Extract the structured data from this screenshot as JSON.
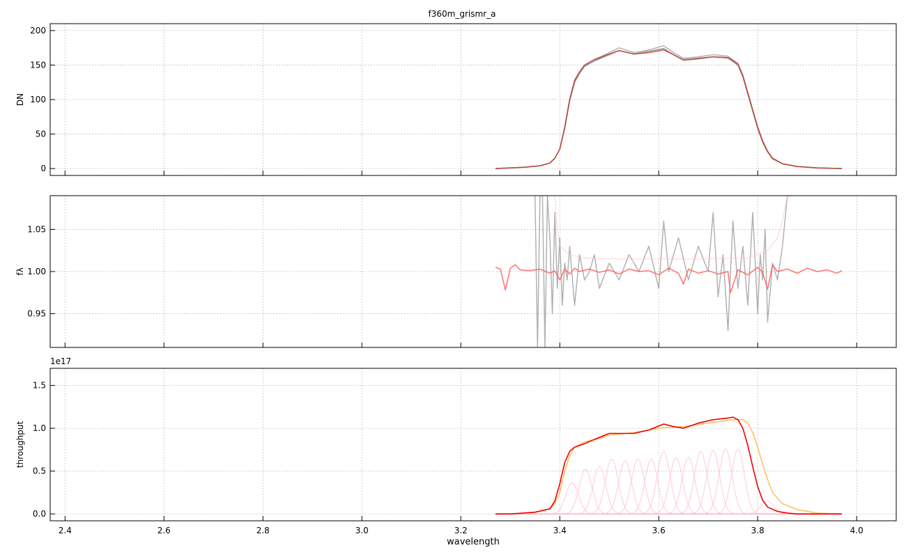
{
  "figure": {
    "title": "f360m_grismr_a",
    "xlabel": "wavelength"
  },
  "colors": {
    "grid": "#b0b0b0",
    "data_gray": "#7f7f7f",
    "model_red": "#c0392b",
    "ratio_red": "#ff5a5a",
    "total_red": "#ee0000",
    "orange": "#ffc060",
    "pink": "#ffc0cb"
  },
  "chart_data": [
    {
      "type": "line",
      "panel": "top",
      "ylabel": "DN",
      "xlim": [
        2.37,
        4.08
      ],
      "ylim": [
        -10,
        210
      ],
      "xticks": [
        2.4,
        2.6,
        2.8,
        3.0,
        3.2,
        3.4,
        3.6,
        3.8,
        4.0
      ],
      "yticks": [
        0,
        50,
        100,
        150,
        200
      ],
      "yticklabels": [
        "0",
        "50",
        "100",
        "150",
        "200"
      ],
      "grid": true,
      "series": [
        {
          "role": "data_noisy_light",
          "x": [
            3.27,
            3.3,
            3.33,
            3.36,
            3.38,
            3.39,
            3.4,
            3.41,
            3.42,
            3.43,
            3.44,
            3.45,
            3.47,
            3.5,
            3.52,
            3.55,
            3.58,
            3.61,
            3.63,
            3.65,
            3.68,
            3.71,
            3.74,
            3.76,
            3.77,
            3.78,
            3.79,
            3.8,
            3.81,
            3.82,
            3.83,
            3.85,
            3.88,
            3.92,
            3.97
          ],
          "y": [
            0,
            1,
            2,
            4,
            8,
            15,
            28,
            60,
            100,
            128,
            140,
            150,
            158,
            168,
            175,
            168,
            172,
            178,
            168,
            160,
            162,
            165,
            163,
            152,
            135,
            110,
            85,
            60,
            40,
            25,
            15,
            7,
            3,
            1,
            0
          ]
        },
        {
          "role": "data_noisy_dark",
          "x": [
            3.27,
            3.3,
            3.33,
            3.36,
            3.38,
            3.39,
            3.4,
            3.41,
            3.42,
            3.43,
            3.44,
            3.45,
            3.47,
            3.5,
            3.52,
            3.55,
            3.58,
            3.61,
            3.63,
            3.65,
            3.68,
            3.71,
            3.74,
            3.76,
            3.77,
            3.78,
            3.79,
            3.8,
            3.81,
            3.82,
            3.83,
            3.85,
            3.88,
            3.92,
            3.97
          ],
          "y": [
            0,
            1,
            2,
            4,
            8,
            15,
            28,
            58,
            98,
            125,
            138,
            148,
            156,
            165,
            171,
            166,
            170,
            174,
            165,
            158,
            160,
            162,
            160,
            150,
            133,
            108,
            83,
            58,
            38,
            24,
            14,
            7,
            3,
            1,
            0
          ]
        },
        {
          "role": "model",
          "x": [
            3.27,
            3.3,
            3.33,
            3.36,
            3.38,
            3.39,
            3.4,
            3.41,
            3.42,
            3.43,
            3.44,
            3.45,
            3.47,
            3.5,
            3.52,
            3.55,
            3.58,
            3.61,
            3.63,
            3.65,
            3.68,
            3.71,
            3.74,
            3.76,
            3.77,
            3.78,
            3.79,
            3.8,
            3.81,
            3.82,
            3.83,
            3.85,
            3.88,
            3.92,
            3.97
          ],
          "y": [
            0,
            1,
            2,
            4,
            8,
            15,
            28,
            60,
            100,
            128,
            140,
            150,
            158,
            166,
            171,
            166,
            168,
            172,
            165,
            157,
            159,
            162,
            161,
            152,
            135,
            110,
            85,
            60,
            40,
            25,
            15,
            7,
            3,
            1,
            0
          ]
        }
      ]
    },
    {
      "type": "line",
      "panel": "middle",
      "ylabel": "fλ",
      "xlim": [
        2.37,
        4.08
      ],
      "ylim": [
        0.91,
        1.09
      ],
      "xticks": [
        2.4,
        2.6,
        2.8,
        3.0,
        3.2,
        3.4,
        3.6,
        3.8,
        4.0
      ],
      "yticks": [
        0.95,
        1.0,
        1.05
      ],
      "yticklabels": [
        "0.95",
        "1.00",
        "1.05"
      ],
      "grid": true,
      "series": [
        {
          "role": "data_ratio_gray",
          "x": [
            3.35,
            3.355,
            3.36,
            3.365,
            3.37,
            3.375,
            3.38,
            3.385,
            3.39,
            3.395,
            3.4,
            3.405,
            3.41,
            3.415,
            3.42,
            3.43,
            3.44,
            3.45,
            3.46,
            3.47,
            3.48,
            3.5,
            3.52,
            3.54,
            3.56,
            3.58,
            3.6,
            3.61,
            3.62,
            3.64,
            3.66,
            3.68,
            3.7,
            3.71,
            3.72,
            3.73,
            3.74,
            3.745,
            3.75,
            3.76,
            3.77,
            3.78,
            3.79,
            3.8,
            3.805,
            3.81,
            3.815,
            3.82,
            3.83,
            3.84,
            3.85,
            3.86,
            3.87
          ],
          "y": [
            1.09,
            0.91,
            1.09,
            1.09,
            0.91,
            1.09,
            1.04,
            0.95,
            1.07,
            0.98,
            1.04,
            0.96,
            1.01,
            0.99,
            1.03,
            0.96,
            1.02,
            0.99,
            1.0,
            1.02,
            0.98,
            1.01,
            0.99,
            1.02,
            1.0,
            1.03,
            0.98,
            1.06,
            1.0,
            1.04,
            0.99,
            1.03,
            1.0,
            1.07,
            0.97,
            1.02,
            0.93,
            1.0,
            1.06,
            0.98,
            1.03,
            0.96,
            1.07,
            0.95,
            1.02,
            0.99,
            1.05,
            0.94,
            1.01,
            0.99,
            1.03,
            1.09,
            1.09
          ]
        },
        {
          "role": "ratio_model",
          "x": [
            3.27,
            3.28,
            3.29,
            3.3,
            3.31,
            3.32,
            3.34,
            3.36,
            3.38,
            3.39,
            3.4,
            3.41,
            3.42,
            3.43,
            3.44,
            3.46,
            3.48,
            3.5,
            3.52,
            3.54,
            3.56,
            3.58,
            3.6,
            3.62,
            3.64,
            3.65,
            3.66,
            3.68,
            3.7,
            3.72,
            3.74,
            3.745,
            3.76,
            3.78,
            3.8,
            3.81,
            3.82,
            3.83,
            3.84,
            3.86,
            3.88,
            3.9,
            3.92,
            3.94,
            3.96,
            3.97
          ],
          "y": [
            1.005,
            1.003,
            0.978,
            1.004,
            1.008,
            1.002,
            1.001,
            1.003,
            0.998,
            1.001,
            0.99,
            1.003,
            0.997,
            1.004,
            1.0,
            1.003,
            0.999,
            1.002,
            0.997,
            1.003,
            1.0,
            1.001,
            0.996,
            1.004,
            0.998,
            0.985,
            1.003,
            0.998,
            1.001,
            0.997,
            1.0,
            0.975,
            1.002,
            0.996,
            1.005,
            0.999,
            0.979,
            1.008,
            1.0,
            1.003,
            0.998,
            1.004,
            1.0,
            1.002,
            0.998,
            1.001
          ]
        },
        {
          "role": "envelope_pink",
          "x": [
            3.39,
            3.395,
            3.4,
            3.42,
            3.45,
            3.5,
            3.6,
            3.7,
            3.78,
            3.82,
            3.84,
            3.85,
            3.86
          ],
          "y": [
            1.09,
            1.05,
            1.03,
            1.02,
            1.016,
            1.015,
            1.015,
            1.015,
            1.016,
            1.025,
            1.04,
            1.06,
            1.09
          ]
        }
      ]
    },
    {
      "type": "line",
      "panel": "bottom",
      "ylabel": "throughput",
      "offset_text": "1e17",
      "xlim": [
        2.37,
        4.08
      ],
      "ylim": [
        -0.08,
        1.7
      ],
      "xticks": [
        2.4,
        2.6,
        2.8,
        3.0,
        3.2,
        3.4,
        3.6,
        3.8,
        4.0
      ],
      "xticklabels": [
        "2.4",
        "2.6",
        "2.8",
        "3.0",
        "3.2",
        "3.4",
        "3.6",
        "3.8",
        "4.0"
      ],
      "yticks": [
        0.0,
        0.5,
        1.0,
        1.5
      ],
      "yticklabels": [
        "0.0",
        "0.5",
        "1.0",
        "1.5"
      ],
      "grid": true,
      "series": [
        {
          "role": "orange_envelope",
          "x": [
            3.27,
            3.3,
            3.35,
            3.38,
            3.39,
            3.4,
            3.41,
            3.42,
            3.43,
            3.45,
            3.48,
            3.5,
            3.55,
            3.6,
            3.62,
            3.65,
            3.7,
            3.75,
            3.77,
            3.78,
            3.79,
            3.8,
            3.81,
            3.82,
            3.83,
            3.85,
            3.88,
            3.92,
            3.97
          ],
          "y": [
            0.0,
            0.0,
            0.02,
            0.06,
            0.12,
            0.25,
            0.5,
            0.68,
            0.78,
            0.84,
            0.88,
            0.92,
            0.95,
            1.0,
            1.01,
            1.02,
            1.06,
            1.1,
            1.1,
            1.06,
            0.95,
            0.78,
            0.58,
            0.4,
            0.25,
            0.12,
            0.05,
            0.01,
            0.0
          ]
        },
        {
          "role": "total_red",
          "x": [
            3.27,
            3.3,
            3.35,
            3.38,
            3.39,
            3.4,
            3.41,
            3.42,
            3.43,
            3.45,
            3.47,
            3.5,
            3.52,
            3.55,
            3.58,
            3.61,
            3.63,
            3.65,
            3.68,
            3.71,
            3.74,
            3.75,
            3.76,
            3.77,
            3.78,
            3.79,
            3.8,
            3.81,
            3.82,
            3.84,
            3.86,
            3.88,
            3.92,
            3.97
          ],
          "y": [
            0.0,
            0.0,
            0.02,
            0.06,
            0.15,
            0.35,
            0.6,
            0.73,
            0.78,
            0.82,
            0.87,
            0.94,
            0.94,
            0.94,
            0.98,
            1.05,
            1.02,
            1.0,
            1.06,
            1.1,
            1.12,
            1.13,
            1.1,
            1.0,
            0.8,
            0.55,
            0.32,
            0.16,
            0.08,
            0.03,
            0.01,
            0.0,
            0.0,
            0.0
          ]
        }
      ],
      "components": {
        "role": "pink_components",
        "centers": [
          3.425,
          3.452,
          3.48,
          3.505,
          3.532,
          3.558,
          3.585,
          3.61,
          3.635,
          3.66,
          3.685,
          3.71,
          3.735,
          3.76,
          3.82
        ],
        "amplitudes": [
          0.36,
          0.52,
          0.55,
          0.64,
          0.62,
          0.64,
          0.64,
          0.73,
          0.66,
          0.66,
          0.73,
          0.74,
          0.76,
          0.76,
          0.15
        ],
        "sigma": 0.013
      }
    }
  ]
}
